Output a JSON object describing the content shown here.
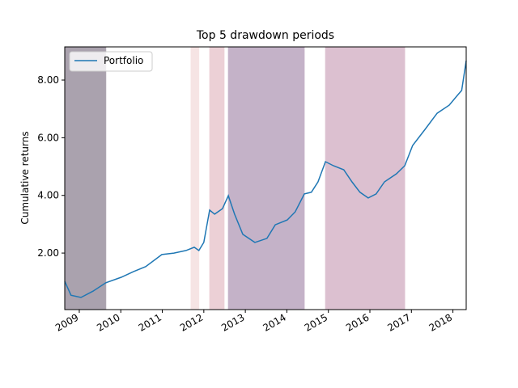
{
  "chart_data": {
    "type": "line",
    "title": "Top 5 drawdown periods",
    "y_label": "Cumulative returns",
    "x": [
      2008.65,
      2008.8,
      2009.04,
      2009.33,
      2009.64,
      2010.01,
      2010.31,
      2010.6,
      2010.99,
      2011.28,
      2011.57,
      2011.77,
      2011.88,
      2012.0,
      2012.14,
      2012.26,
      2012.45,
      2012.59,
      2012.74,
      2012.94,
      2013.23,
      2013.52,
      2013.72,
      2014.01,
      2014.2,
      2014.42,
      2014.59,
      2014.75,
      2014.93,
      2015.12,
      2015.37,
      2015.57,
      2015.76,
      2015.96,
      2016.15,
      2016.35,
      2016.64,
      2016.84,
      2017.03,
      2017.33,
      2017.62,
      2017.91,
      2018.11,
      2018.21,
      2018.32
    ],
    "series": [
      {
        "name": "Portfolio",
        "color": "#1f77b4",
        "values": [
          1.02,
          0.54,
          0.46,
          0.68,
          0.97,
          1.16,
          1.36,
          1.53,
          1.95,
          2.0,
          2.09,
          2.2,
          2.09,
          2.37,
          3.49,
          3.35,
          3.54,
          3.99,
          3.35,
          2.65,
          2.37,
          2.51,
          2.98,
          3.15,
          3.43,
          4.05,
          4.11,
          4.47,
          5.17,
          5.03,
          4.89,
          4.47,
          4.11,
          3.91,
          4.05,
          4.47,
          4.75,
          5.03,
          5.73,
          6.29,
          6.85,
          7.13,
          7.47,
          7.64,
          8.67
        ]
      }
    ],
    "drawdowns": [
      {
        "start": 2008.65,
        "end": 2009.64,
        "color": "#aaa2ae"
      },
      {
        "start": 2011.69,
        "end": 2011.88,
        "color": "#f6e4e4"
      },
      {
        "start": 2012.14,
        "end": 2012.49,
        "color": "#ecd0d6"
      },
      {
        "start": 2012.59,
        "end": 2014.42,
        "color": "#c4b2c8"
      },
      {
        "start": 2014.93,
        "end": 2016.84,
        "color": "#dcc0d0"
      }
    ],
    "xlim": [
      2008.65,
      2018.32
    ],
    "xticks": [
      2009,
      2010,
      2011,
      2012,
      2013,
      2014,
      2015,
      2016,
      2017,
      2018
    ],
    "ylim": [
      0.04,
      9.15
    ],
    "yticks": [
      {
        "value": 2,
        "label": "2.00"
      },
      {
        "value": 4,
        "label": "4.00"
      },
      {
        "value": 6,
        "label": "6.00"
      },
      {
        "value": 8,
        "label": "8.00"
      }
    ],
    "legend": "upper left"
  }
}
